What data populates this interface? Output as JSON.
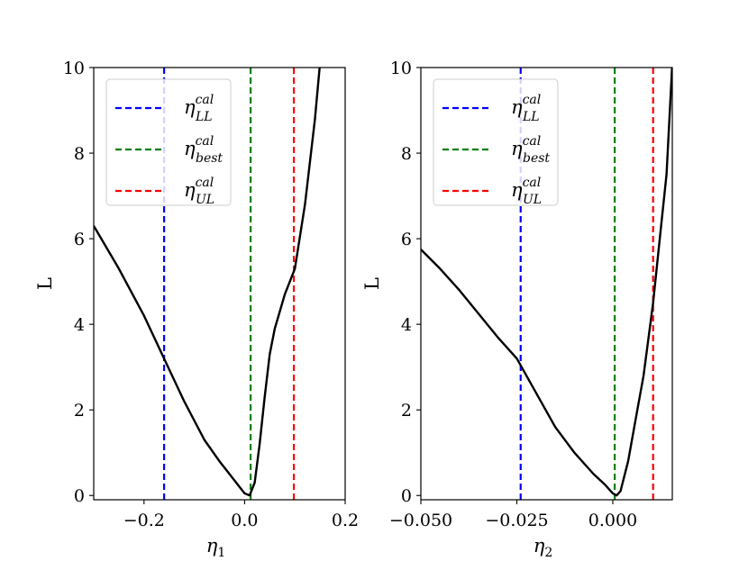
{
  "chart_data": [
    {
      "type": "line",
      "xlabel": "η",
      "xlabel_sub": "1",
      "ylabel": "L",
      "xlim": [
        -0.3,
        0.2
      ],
      "ylim": [
        -0.1,
        10
      ],
      "xticks": [
        -0.2,
        0.0,
        0.2
      ],
      "xtick_labels": [
        "−0.2",
        "0.0",
        "0.2"
      ],
      "yticks": [
        0,
        2,
        4,
        6,
        8,
        10
      ],
      "ytick_labels": [
        "0",
        "2",
        "4",
        "6",
        "8",
        "10"
      ],
      "legend_position": "top-left",
      "series": [
        {
          "name": "L",
          "color": "#000000",
          "x": [
            -0.3,
            -0.25,
            -0.2,
            -0.16,
            -0.12,
            -0.08,
            -0.05,
            -0.03,
            -0.01,
            0.0,
            0.01,
            0.02,
            0.03,
            0.04,
            0.05,
            0.06,
            0.07,
            0.08,
            0.1,
            0.12,
            0.14,
            0.15
          ],
          "y": [
            6.3,
            5.3,
            4.2,
            3.2,
            2.2,
            1.3,
            0.8,
            0.5,
            0.2,
            0.05,
            0.0,
            0.3,
            1.2,
            2.3,
            3.3,
            3.9,
            4.3,
            4.7,
            5.3,
            6.8,
            8.8,
            10.1
          ]
        }
      ],
      "vlines": [
        {
          "x": -0.16,
          "color": "#0000ff",
          "label": "η",
          "sub": "LL",
          "sup": "cal"
        },
        {
          "x": 0.012,
          "color": "#008000",
          "label": "η",
          "sub": "best",
          "sup": "cal"
        },
        {
          "x": 0.098,
          "color": "#ff0000",
          "label": "η",
          "sub": "UL",
          "sup": "cal"
        }
      ]
    },
    {
      "type": "line",
      "xlabel": "η",
      "xlabel_sub": "2",
      "ylabel": "L",
      "xlim": [
        -0.05,
        0.0155
      ],
      "ylim": [
        -0.1,
        10
      ],
      "xticks": [
        -0.05,
        -0.025,
        0.0
      ],
      "xtick_labels": [
        "−0.050",
        "−0.025",
        "0.000"
      ],
      "yticks": [
        0,
        2,
        4,
        6,
        8,
        10
      ],
      "ytick_labels": [
        "0",
        "2",
        "4",
        "6",
        "8",
        "10"
      ],
      "legend_position": "top-left",
      "series": [
        {
          "name": "L",
          "color": "#000000",
          "x": [
            -0.05,
            -0.045,
            -0.04,
            -0.035,
            -0.03,
            -0.025,
            -0.02,
            -0.015,
            -0.01,
            -0.005,
            -0.002,
            0.0,
            0.001,
            0.002,
            0.004,
            0.006,
            0.008,
            0.0105,
            0.012,
            0.014,
            0.0155
          ],
          "y": [
            5.75,
            5.3,
            4.8,
            4.25,
            3.7,
            3.2,
            2.4,
            1.6,
            1.0,
            0.5,
            0.25,
            0.05,
            0.0,
            0.1,
            0.8,
            1.8,
            2.8,
            4.5,
            5.8,
            7.5,
            10.1
          ]
        }
      ],
      "vlines": [
        {
          "x": -0.024,
          "color": "#0000ff",
          "label": "η",
          "sub": "LL",
          "sup": "cal"
        },
        {
          "x": 0.0005,
          "color": "#008000",
          "label": "η",
          "sub": "best",
          "sup": "cal"
        },
        {
          "x": 0.0105,
          "color": "#ff0000",
          "label": "η",
          "sub": "UL",
          "sup": "cal"
        }
      ]
    }
  ]
}
